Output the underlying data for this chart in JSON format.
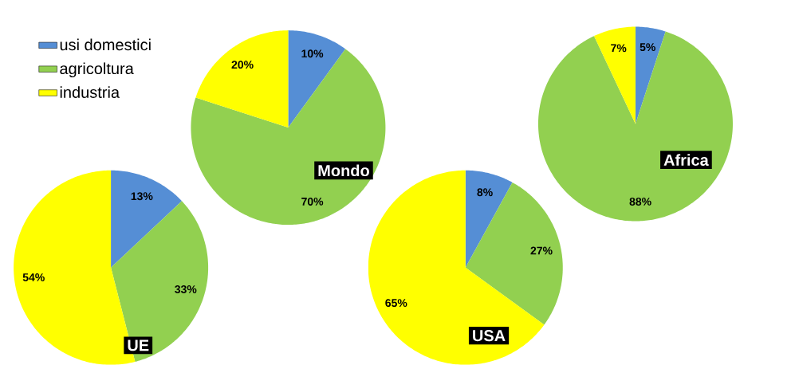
{
  "chart_data": [
    {
      "type": "pie",
      "title": "Mondo",
      "categories": [
        "usi domestici",
        "agricoltura",
        "industria"
      ],
      "values": [
        10,
        70,
        20
      ],
      "value_labels": [
        "10%",
        "70%",
        "20%"
      ],
      "colors": [
        "#558ed5",
        "#92d050",
        "#ffff00"
      ],
      "legend": "left"
    },
    {
      "type": "pie",
      "title": "Africa",
      "categories": [
        null,
        null,
        null
      ],
      "values": [
        5,
        88,
        7
      ],
      "value_labels": [
        "5%",
        "88%",
        "7%"
      ],
      "colors": [
        "#558ed5",
        "#92d050",
        "#ffff00"
      ]
    },
    {
      "type": "pie",
      "title": "UE",
      "categories": [
        null,
        null,
        null
      ],
      "values": [
        13,
        33,
        54
      ],
      "value_labels": [
        "13%",
        "33%",
        "54%"
      ],
      "colors": [
        "#558ed5",
        "#92d050",
        "#ffff00"
      ]
    },
    {
      "type": "pie",
      "title": "USA",
      "categories": [
        null,
        null,
        null
      ],
      "values": [
        8,
        27,
        65
      ],
      "value_labels": [
        "8%",
        "27%",
        "65%"
      ],
      "colors": [
        "#558ed5",
        "#92d050",
        "#ffff00"
      ]
    }
  ]
}
